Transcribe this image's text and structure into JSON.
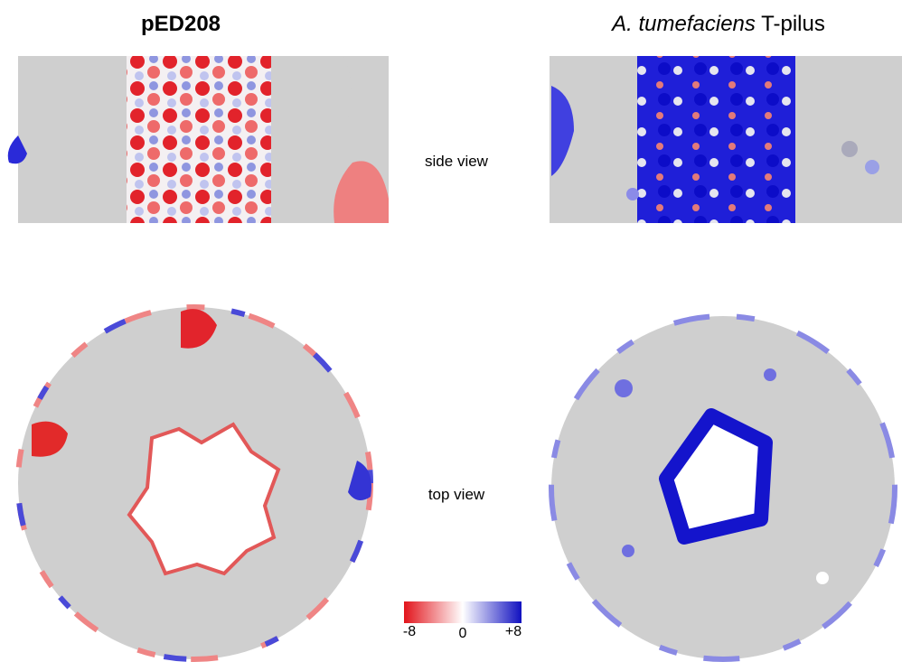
{
  "left_title": "pED208",
  "right_title": {
    "italic": "A. tumefaciens",
    "rest": "T-pilus"
  },
  "row_labels": [
    "side view",
    "top view"
  ],
  "colorbar": {
    "labels": [
      "-8",
      "0",
      "+8"
    ]
  }
}
